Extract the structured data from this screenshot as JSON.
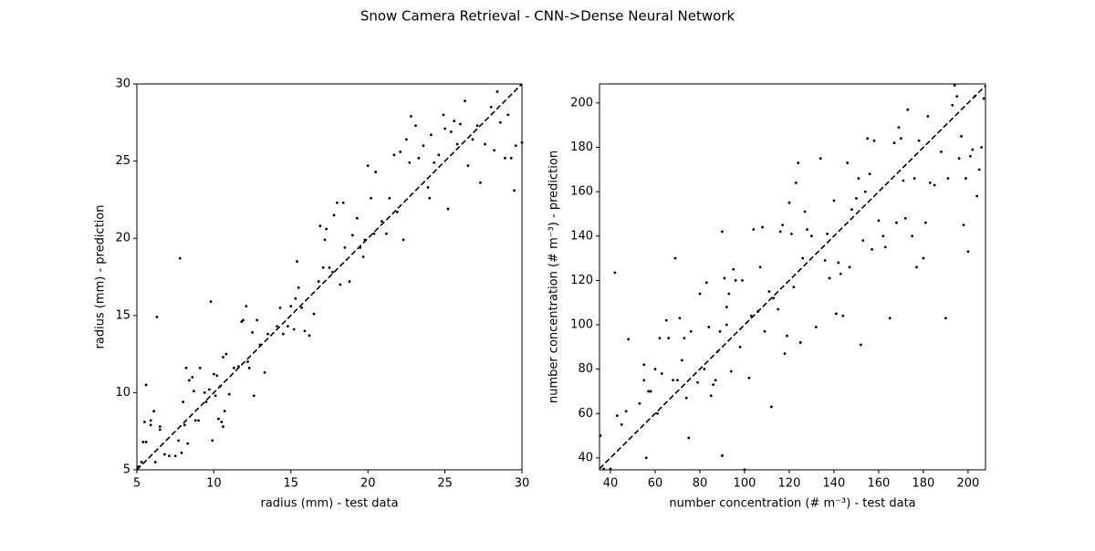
{
  "title": "Snow Camera Retrieval - CNN->Dense Neural Network",
  "chart_data": [
    {
      "type": "scatter",
      "xlabel": "radius (mm) - test data",
      "ylabel": "radius (mm) - prediction",
      "color": "#000000",
      "diagonal": true,
      "xlim": [
        5,
        30
      ],
      "ylim": [
        5,
        30
      ],
      "xticks": [
        5,
        10,
        15,
        20,
        25,
        30
      ],
      "yticks": [
        5,
        10,
        15,
        20,
        25,
        30
      ],
      "x": [
        5.1,
        5.3,
        5.4,
        5.6,
        5.5,
        5.6,
        5.9,
        5.9,
        6.1,
        6.3,
        6.2,
        6.5,
        6.5,
        6.8,
        7.1,
        7.5,
        7.7,
        7.8,
        7.9,
        8.0,
        8.1,
        8.2,
        8.3,
        8.4,
        8.6,
        8.7,
        8.8,
        9.0,
        9.1,
        9.4,
        9.5,
        9.7,
        9.8,
        9.9,
        10.0,
        10.1,
        10.2,
        10.3,
        10.4,
        10.5,
        10.6,
        10.7,
        10.8,
        10.6,
        11.0,
        11.3,
        11.6,
        11.8,
        11.9,
        12.1,
        12.2,
        12.3,
        12.5,
        12.6,
        12.8,
        13.0,
        13.3,
        13.5,
        14.1,
        14.3,
        14.5,
        14.8,
        15.0,
        15.2,
        15.3,
        15.4,
        15.5,
        15.7,
        15.9,
        16.2,
        16.5,
        16.8,
        16.9,
        17.1,
        17.2,
        17.3,
        17.5,
        17.7,
        17.8,
        18.0,
        18.2,
        18.4,
        18.5,
        18.8,
        19.0,
        19.3,
        19.5,
        19.7,
        19.8,
        20.0,
        20.2,
        20.4,
        20.5,
        20.9,
        21.2,
        21.4,
        21.7,
        21.9,
        22.1,
        22.3,
        22.5,
        22.7,
        22.8,
        23.1,
        23.3,
        23.6,
        23.9,
        24.0,
        24.1,
        24.3,
        24.6,
        24.9,
        25.0,
        25.2,
        25.4,
        25.6,
        25.8,
        26.0,
        26.3,
        26.5,
        26.8,
        27.1,
        27.3,
        27.6,
        28.0,
        28.2,
        28.4,
        28.6,
        28.9,
        29.1,
        29.3,
        29.5,
        29.6,
        30.0
      ],
      "y": [
        5.2,
        5.5,
        6.8,
        6.8,
        8.1,
        10.5,
        8.2,
        7.9,
        8.8,
        14.9,
        5.5,
        7.8,
        7.6,
        6.0,
        5.9,
        5.9,
        6.9,
        18.7,
        6.1,
        9.4,
        7.9,
        11.6,
        6.7,
        10.8,
        11.0,
        10.1,
        8.2,
        8.2,
        11.6,
        10.0,
        9.4,
        10.2,
        15.9,
        6.9,
        11.2,
        9.8,
        11.1,
        8.3,
        10.4,
        8.1,
        7.8,
        8.8,
        12.5,
        12.3,
        9.9,
        11.6,
        11.7,
        14.6,
        14.7,
        15.6,
        12.0,
        11.6,
        13.9,
        9.8,
        14.7,
        13.1,
        11.3,
        13.8,
        14.3,
        15.5,
        13.8,
        14.3,
        15.6,
        14.1,
        16.1,
        18.5,
        16.8,
        15.5,
        14.0,
        13.7,
        15.1,
        17.2,
        20.8,
        18.1,
        19.9,
        20.6,
        18.1,
        17.8,
        21.5,
        22.3,
        17.0,
        22.3,
        19.4,
        17.2,
        20.2,
        21.3,
        19.4,
        18.8,
        19.9,
        24.7,
        22.6,
        20.3,
        24.3,
        21.1,
        20.3,
        22.6,
        25.4,
        21.7,
        25.6,
        19.9,
        26.4,
        24.9,
        27.9,
        27.3,
        25.2,
        26.0,
        23.3,
        22.6,
        26.7,
        24.9,
        25.4,
        28.0,
        27.1,
        21.9,
        26.9,
        27.6,
        26.1,
        27.4,
        28.9,
        24.7,
        26.4,
        27.3,
        23.6,
        26.1,
        28.5,
        25.7,
        29.5,
        27.5,
        25.2,
        28.0,
        25.2,
        23.1,
        26.0,
        26.2
      ]
    },
    {
      "type": "scatter",
      "xlabel": "number concentration (# m⁻³) - test data",
      "ylabel": "number concentration (# m⁻³) - prediction",
      "color": "#000000",
      "diagonal": true,
      "xlim": [
        35.1,
        207.8
      ],
      "ylim": [
        34.6,
        208.6
      ],
      "xticks": [
        40,
        60,
        80,
        100,
        120,
        140,
        160,
        180,
        200
      ],
      "yticks": [
        40,
        60,
        80,
        100,
        120,
        140,
        160,
        180,
        200
      ],
      "x": [
        35.5,
        37,
        40,
        42,
        43,
        45,
        47,
        48,
        53,
        55,
        55,
        56,
        57,
        58,
        60,
        61,
        62,
        63,
        65,
        66,
        68,
        69,
        70,
        71,
        72,
        73,
        74,
        75,
        76,
        79,
        80,
        82,
        83,
        84,
        85,
        86,
        87,
        88,
        89,
        90,
        90,
        91,
        92,
        92,
        93,
        94,
        95,
        96,
        98,
        99,
        100,
        102,
        103,
        104,
        106,
        107,
        108,
        109,
        111,
        112,
        113,
        115,
        116,
        117,
        118,
        119,
        120,
        121,
        122,
        123,
        124,
        125,
        126,
        127,
        128,
        130,
        132,
        134,
        136,
        137,
        138,
        140,
        141,
        142,
        143,
        144,
        146,
        147,
        148,
        150,
        151,
        152,
        153,
        154,
        155,
        156,
        157,
        158,
        160,
        162,
        163,
        165,
        167,
        168,
        169,
        170,
        171,
        172,
        173,
        175,
        176,
        177,
        178,
        180,
        181,
        182,
        183,
        185,
        188,
        190,
        191,
        193,
        194,
        195,
        196,
        197,
        198,
        199,
        200,
        201,
        202,
        203,
        204,
        205,
        206,
        207
      ],
      "y": [
        50,
        35,
        35,
        123.5,
        59,
        55,
        61,
        93.5,
        64.5,
        75,
        82,
        40,
        70,
        70,
        80,
        60,
        94,
        78,
        102,
        94,
        75,
        130,
        75,
        103,
        84,
        94,
        67,
        49,
        97,
        74,
        114,
        80,
        119,
        99,
        68,
        73,
        75,
        88,
        97,
        41,
        142,
        121,
        100,
        108,
        114,
        79,
        125,
        120,
        90,
        120,
        34.7,
        76,
        104,
        143,
        106,
        126,
        144,
        97,
        115,
        63,
        112,
        107,
        142,
        145,
        87,
        95,
        155,
        141,
        117,
        164,
        173,
        92,
        130,
        151,
        143,
        140,
        99,
        175,
        129,
        141,
        121,
        156,
        105,
        128,
        123,
        104,
        173,
        126,
        152,
        157,
        166,
        91,
        138,
        160,
        184,
        168,
        134,
        183,
        147,
        140,
        135,
        103,
        182,
        146,
        189,
        184,
        165,
        148,
        197,
        140,
        166,
        126,
        183,
        130,
        146,
        194,
        164,
        163,
        178,
        103,
        166,
        199,
        208,
        203,
        175,
        185,
        145,
        166,
        133,
        176,
        179,
        203,
        158,
        170,
        180,
        202
      ]
    }
  ]
}
